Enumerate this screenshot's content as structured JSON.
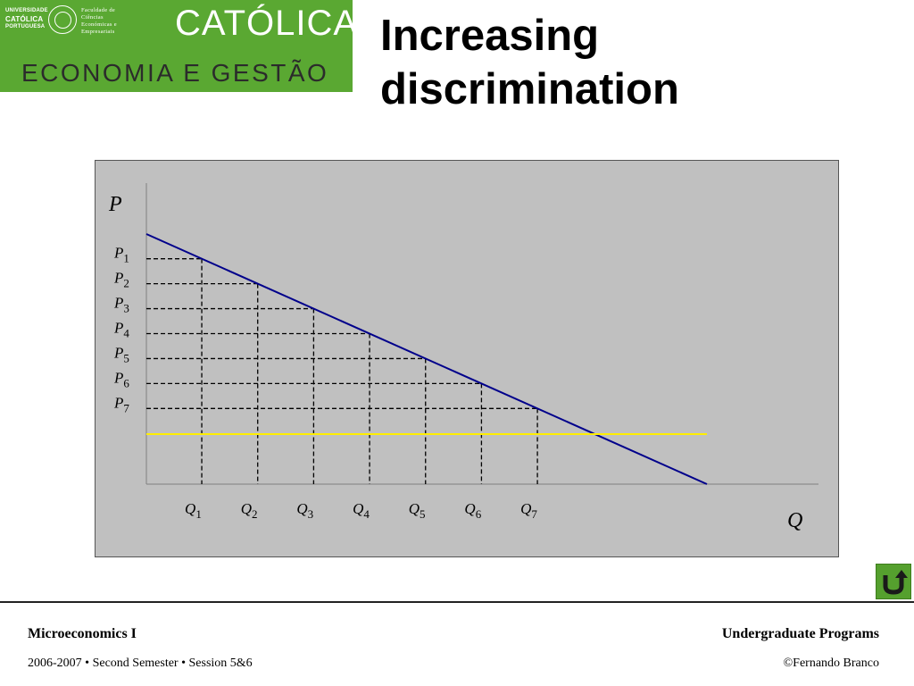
{
  "logo": {
    "left_line1": "UNIVERSIDADE",
    "left_line2": "CATÓLICA",
    "left_line3": "PORTUGUESA",
    "right_line1": "Faculdade de",
    "right_line2": "Ciências",
    "right_line3": "Económicas e",
    "right_line4": "Empresariais",
    "brand_top": "CATÓLICA",
    "brand_bottom": "ECONOMIA E GESTÃO",
    "color": "#5aa832"
  },
  "slide": {
    "title": "Increasing discrimination"
  },
  "chart_data": {
    "type": "line",
    "x_axis_label": "Q",
    "y_axis_label": "P",
    "series": [
      {
        "x": [
          0,
          1
        ],
        "y": [
          1,
          0
        ],
        "color": "#00008b"
      },
      {
        "x": [
          0,
          1
        ],
        "y": [
          0.2,
          0.2
        ],
        "color": "#ffee00"
      }
    ],
    "steps": [
      {
        "q_label": "Q",
        "q_sub": "1",
        "p_label": "P",
        "p_sub": "1"
      },
      {
        "q_label": "Q",
        "q_sub": "2",
        "p_label": "P",
        "p_sub": "2"
      },
      {
        "q_label": "Q",
        "q_sub": "3",
        "p_label": "P",
        "p_sub": "3"
      },
      {
        "q_label": "Q",
        "q_sub": "4",
        "p_label": "P",
        "p_sub": "4"
      },
      {
        "q_label": "Q",
        "q_sub": "5",
        "p_label": "P",
        "p_sub": "5"
      },
      {
        "q_label": "Q",
        "q_sub": "6",
        "p_label": "P",
        "p_sub": "6"
      },
      {
        "q_label": "Q",
        "q_sub": "7",
        "p_label": "P",
        "p_sub": "7"
      }
    ],
    "xlim": [
      0,
      1.2
    ],
    "ylim": [
      0,
      1.2
    ],
    "grid": false,
    "background": "#c0c0c0"
  },
  "footer": {
    "left_title": "Microeconomics I",
    "left_sub": "2006-2007 • Second Semester • Session 5&6",
    "right_title": "Undergraduate Programs",
    "right_sub": "©Fernando Branco"
  },
  "nav": {
    "home_icon": "u-turn-arrow-icon",
    "button_color": "#55a02e"
  }
}
